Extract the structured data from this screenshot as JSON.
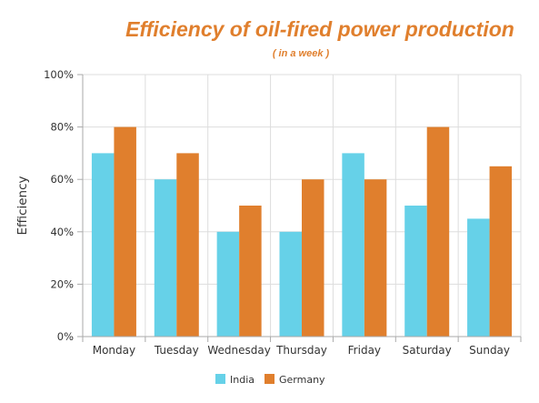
{
  "colors": {
    "india": "#66d1e8",
    "germany": "#e07f2d",
    "title": "#e07f2d",
    "grid": "#dddddd",
    "axis": "#aaaaaa"
  },
  "chart_data": {
    "type": "bar",
    "title": "Efficiency of oil-fired power production",
    "subtitle": "( in a week )",
    "xlabel": "",
    "ylabel": "Efficiency",
    "ylim": [
      0,
      100
    ],
    "yticks": [
      0,
      20,
      40,
      60,
      80,
      100
    ],
    "ytick_labels": [
      "0%",
      "20%",
      "40%",
      "60%",
      "80%",
      "100%"
    ],
    "grid": true,
    "legend_position": "bottom",
    "categories": [
      "Monday",
      "Tuesday",
      "Wednesday",
      "Thursday",
      "Friday",
      "Saturday",
      "Sunday"
    ],
    "series": [
      {
        "name": "India",
        "color": "#66d1e8",
        "values": [
          70,
          60,
          40,
          40,
          70,
          50,
          45
        ]
      },
      {
        "name": "Germany",
        "color": "#e07f2d",
        "values": [
          80,
          70,
          50,
          60,
          60,
          80,
          65
        ]
      }
    ]
  }
}
